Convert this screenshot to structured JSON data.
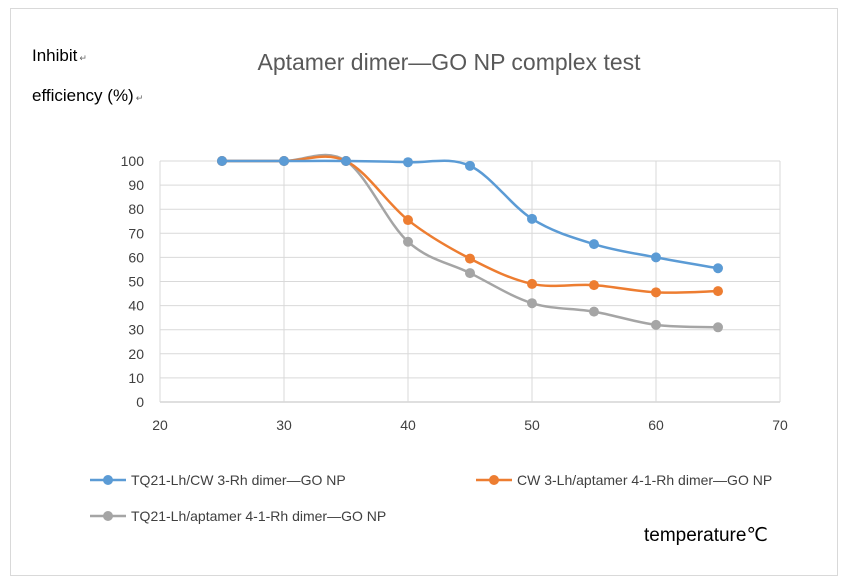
{
  "chart_data": {
    "type": "line",
    "title": "Aptamer dimer—GO NP complex test",
    "ylabel_line1": "Inhibit",
    "ylabel_line2": "efficiency (%)",
    "ylabel_mark": "↵",
    "xlabel": "temperature℃",
    "xlim": [
      20,
      70
    ],
    "ylim": [
      0,
      100
    ],
    "xticks": [
      20,
      30,
      40,
      50,
      60,
      70
    ],
    "yticks": [
      0,
      10,
      20,
      30,
      40,
      50,
      60,
      70,
      80,
      90,
      100
    ],
    "grid": true,
    "smooth": true,
    "legend_position": "bottom",
    "x": [
      25,
      30,
      35,
      40,
      45,
      50,
      55,
      60,
      65
    ],
    "series": [
      {
        "name": "TQ21-Lh/CW 3-Rh dimer—GO NP",
        "color": "#5b9bd5",
        "values": [
          100,
          100,
          100,
          99.5,
          98,
          76,
          65.5,
          60,
          55.5
        ]
      },
      {
        "name": "CW 3-Lh/aptamer 4-1-Rh dimer—GO NP",
        "color": "#ed7d31",
        "values": [
          100,
          100,
          100,
          75.5,
          59.5,
          49,
          48.5,
          45.5,
          46
        ]
      },
      {
        "name": "TQ21-Lh/aptamer 4-1-Rh dimer—GO NP",
        "color": "#a5a5a5",
        "values": [
          100,
          100,
          100,
          66.5,
          53.5,
          41,
          37.5,
          32,
          31
        ]
      }
    ]
  }
}
